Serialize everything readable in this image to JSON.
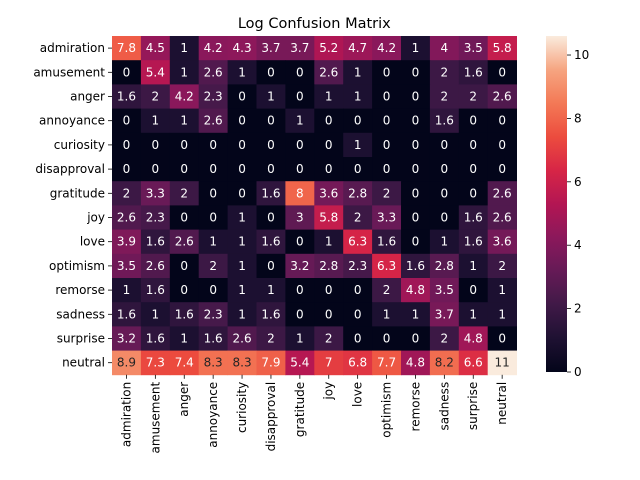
{
  "chart_data": {
    "type": "heatmap",
    "title": "Log Confusion Matrix",
    "xlabel": "",
    "ylabel": "",
    "rows": [
      "admiration",
      "amusement",
      "anger",
      "annoyance",
      "curiosity",
      "disapproval",
      "gratitude",
      "joy",
      "love",
      "optimism",
      "remorse",
      "sadness",
      "surprise",
      "neutral"
    ],
    "cols": [
      "admiration",
      "amusement",
      "anger",
      "annoyance",
      "curiosity",
      "disapproval",
      "gratitude",
      "joy",
      "love",
      "optimism",
      "remorse",
      "sadness",
      "surprise",
      "neutral"
    ],
    "values": [
      [
        7.8,
        4.5,
        1,
        4.2,
        4.3,
        3.7,
        3.7,
        5.2,
        4.7,
        4.2,
        1,
        4,
        3.5,
        5.8
      ],
      [
        0,
        5.4,
        1,
        2.6,
        1,
        0,
        0,
        2.6,
        1,
        0,
        0,
        2,
        1.6,
        0
      ],
      [
        1.6,
        2,
        4.2,
        2.3,
        0,
        1,
        0,
        1,
        1,
        0,
        0,
        2,
        2,
        2.6
      ],
      [
        0,
        1,
        1,
        2.6,
        0,
        0,
        1,
        0,
        0,
        0,
        0,
        1.6,
        0,
        0
      ],
      [
        0,
        0,
        0,
        0,
        0,
        0,
        0,
        0,
        1,
        0,
        0,
        0,
        0,
        0
      ],
      [
        0,
        0,
        0,
        0,
        0,
        0,
        0,
        0,
        0,
        0,
        0,
        0,
        0,
        0
      ],
      [
        2,
        3.3,
        2,
        0,
        0,
        1.6,
        8,
        3.6,
        2.8,
        2,
        0,
        0,
        0,
        2.6
      ],
      [
        2.6,
        2.3,
        0,
        0,
        1,
        0,
        3,
        5.8,
        2,
        3.3,
        0,
        0,
        1.6,
        2.6
      ],
      [
        3.9,
        1.6,
        2.6,
        1,
        1,
        1.6,
        0,
        1,
        6.3,
        1.6,
        0,
        1,
        1.6,
        3.6
      ],
      [
        3.5,
        2.6,
        0,
        2,
        1,
        0,
        3.2,
        2.8,
        2.3,
        6.3,
        1.6,
        2.8,
        1,
        2
      ],
      [
        1,
        1.6,
        0,
        0,
        1,
        1,
        0,
        0,
        0,
        2,
        4.8,
        3.5,
        0,
        1
      ],
      [
        1.6,
        1,
        1.6,
        2.3,
        1,
        1.6,
        0,
        0,
        0,
        1,
        1,
        3.7,
        1,
        1
      ],
      [
        3.2,
        1.6,
        1,
        1.6,
        2.6,
        2,
        1,
        2,
        0,
        0,
        0,
        2,
        4.8,
        0
      ],
      [
        8.9,
        7.3,
        7.4,
        8.3,
        8.3,
        7.9,
        5.4,
        7,
        6.8,
        7.7,
        4.8,
        8.2,
        6.6,
        11
      ]
    ],
    "colorbar": {
      "min": 0,
      "max": 10.6,
      "ticks": [
        0,
        2,
        4,
        6,
        8,
        10
      ],
      "colormap": "rocket"
    },
    "grid": false
  }
}
